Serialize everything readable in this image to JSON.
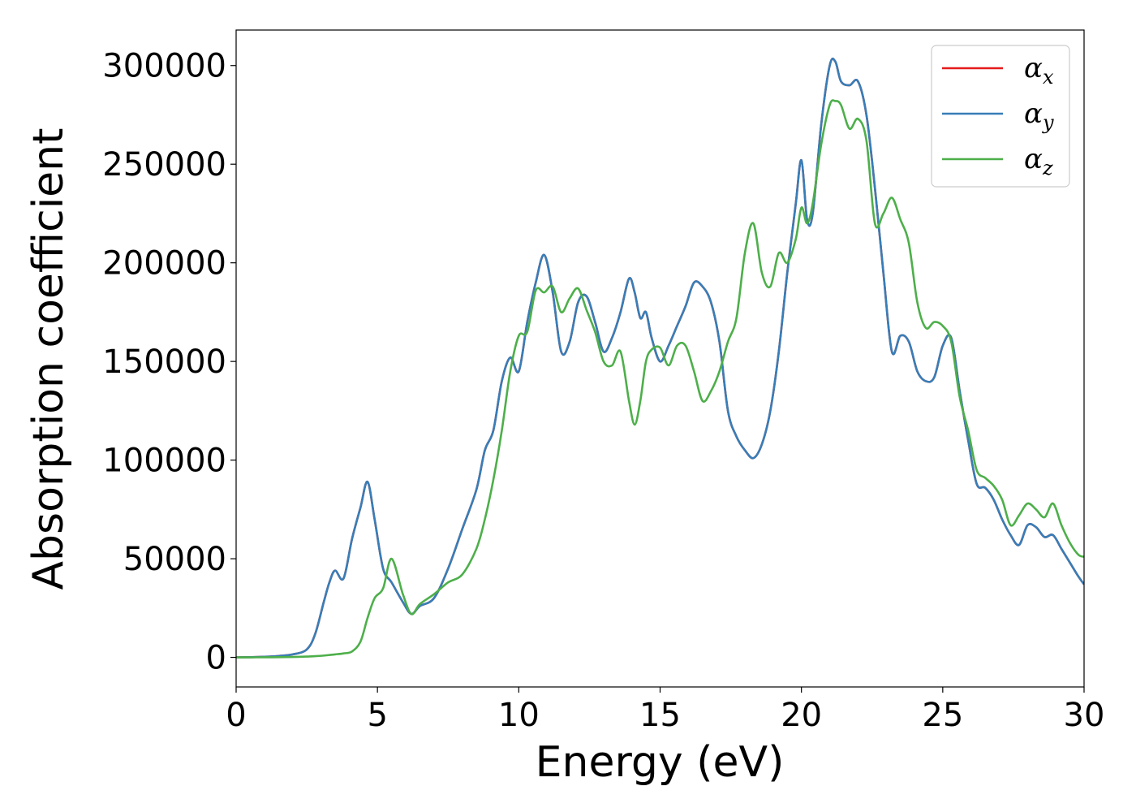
{
  "chart_data": {
    "type": "line",
    "title": "",
    "xlabel": "Energy (eV)",
    "ylabel": "Absorption coefficient",
    "xlim": [
      0,
      30
    ],
    "ylim": [
      -15000,
      318000
    ],
    "xticks": [
      0,
      5,
      10,
      15,
      20,
      25,
      30
    ],
    "yticks": [
      0,
      50000,
      100000,
      150000,
      200000,
      250000,
      300000
    ],
    "grid": false,
    "legend_position": "top-right",
    "colors": {
      "alpha_x": "#e41a1c",
      "alpha_y": "#377eb8",
      "alpha_z": "#4daf4a"
    },
    "x": [
      0,
      0.5,
      1,
      1.5,
      2,
      2.5,
      2.8,
      3.1,
      3.3,
      3.5,
      3.8,
      4.1,
      4.4,
      4.65,
      4.9,
      5.2,
      5.5,
      5.9,
      6.2,
      6.5,
      7,
      7.5,
      8,
      8.5,
      8.8,
      9.1,
      9.4,
      9.7,
      10,
      10.3,
      10.6,
      10.9,
      11.2,
      11.5,
      11.8,
      12.1,
      12.4,
      12.7,
      13.0,
      13.3,
      13.6,
      13.9,
      14.1,
      14.3,
      14.5,
      14.7,
      15.0,
      15.3,
      15.6,
      15.9,
      16.2,
      16.5,
      16.8,
      17.1,
      17.4,
      17.7,
      18.0,
      18.3,
      18.6,
      18.9,
      19.2,
      19.5,
      19.8,
      20.0,
      20.2,
      20.4,
      20.7,
      21.0,
      21.2,
      21.4,
      21.7,
      22.0,
      22.3,
      22.6,
      22.9,
      23.2,
      23.5,
      23.8,
      24.1,
      24.4,
      24.7,
      25.0,
      25.3,
      25.6,
      25.9,
      26.2,
      26.5,
      26.8,
      27.1,
      27.4,
      27.7,
      28.0,
      28.3,
      28.6,
      28.9,
      29.2,
      29.5,
      29.8,
      30.0
    ],
    "series": [
      {
        "name": "αx",
        "values": [
          0,
          100,
          300,
          700,
          1500,
          4000,
          12000,
          28000,
          38000,
          44000,
          40000,
          60000,
          76000,
          89000,
          70000,
          45000,
          38000,
          28000,
          22000,
          26000,
          30000,
          45000,
          65000,
          85000,
          105000,
          115000,
          140000,
          152000,
          145000,
          170000,
          190000,
          204000,
          185000,
          155000,
          160000,
          180000,
          183000,
          170000,
          155000,
          162000,
          175000,
          192000,
          185000,
          172000,
          175000,
          162000,
          150000,
          158000,
          168000,
          178000,
          190000,
          188000,
          180000,
          160000,
          125000,
          112000,
          105000,
          101000,
          108000,
          125000,
          155000,
          195000,
          230000,
          252000,
          222000,
          225000,
          270000,
          300000,
          302000,
          292000,
          290000,
          292000,
          275000,
          238000,
          195000,
          155000,
          163000,
          160000,
          145000,
          140000,
          142000,
          158000,
          162000,
          135000,
          110000,
          88000,
          86000,
          80000,
          70000,
          62000,
          57000,
          67000,
          66000,
          61000,
          62000,
          55000,
          48000,
          41000,
          37000
        ]
      },
      {
        "name": "αy",
        "values": [
          0,
          100,
          300,
          700,
          1500,
          4000,
          12000,
          28000,
          38000,
          44000,
          40000,
          60000,
          76000,
          89000,
          70000,
          45000,
          38000,
          28000,
          22000,
          26000,
          30000,
          45000,
          65000,
          85000,
          105000,
          115000,
          140000,
          152000,
          145000,
          170000,
          190000,
          204000,
          185000,
          155000,
          160000,
          180000,
          183000,
          170000,
          155000,
          162000,
          175000,
          192000,
          185000,
          172000,
          175000,
          162000,
          150000,
          158000,
          168000,
          178000,
          190000,
          188000,
          180000,
          160000,
          125000,
          112000,
          105000,
          101000,
          108000,
          125000,
          155000,
          195000,
          230000,
          252000,
          222000,
          225000,
          270000,
          300000,
          302000,
          292000,
          290000,
          292000,
          275000,
          238000,
          195000,
          155000,
          163000,
          160000,
          145000,
          140000,
          142000,
          158000,
          162000,
          135000,
          110000,
          88000,
          86000,
          80000,
          70000,
          62000,
          57000,
          67000,
          66000,
          61000,
          62000,
          55000,
          48000,
          41000,
          37000
        ]
      },
      {
        "name": "αz",
        "values": [
          0,
          0,
          50,
          100,
          200,
          400,
          600,
          900,
          1200,
          1500,
          2000,
          3000,
          8000,
          20000,
          30000,
          35000,
          50000,
          32000,
          22000,
          27000,
          32000,
          38000,
          42000,
          55000,
          70000,
          90000,
          115000,
          145000,
          163000,
          165000,
          186000,
          185000,
          188000,
          175000,
          182000,
          187000,
          176000,
          165000,
          150000,
          148000,
          155000,
          130000,
          118000,
          130000,
          150000,
          156000,
          157000,
          148000,
          158000,
          158000,
          145000,
          130000,
          135000,
          145000,
          160000,
          172000,
          205000,
          220000,
          195000,
          188000,
          205000,
          200000,
          212000,
          228000,
          220000,
          230000,
          260000,
          280000,
          282000,
          280000,
          268000,
          273000,
          262000,
          220000,
          225000,
          233000,
          222000,
          210000,
          180000,
          167000,
          170000,
          168000,
          160000,
          132000,
          115000,
          95000,
          91000,
          87000,
          80000,
          67000,
          72000,
          78000,
          75000,
          71000,
          78000,
          67000,
          58000,
          52000,
          51000
        ]
      }
    ]
  },
  "legend": {
    "entries": [
      {
        "symbol": "α",
        "sub": "x"
      },
      {
        "symbol": "α",
        "sub": "y"
      },
      {
        "symbol": "α",
        "sub": "z"
      }
    ]
  }
}
